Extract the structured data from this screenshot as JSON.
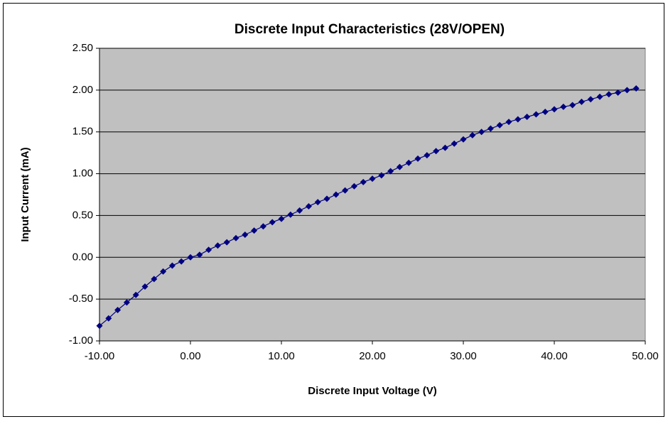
{
  "chart_data": {
    "type": "scatter",
    "title": "Discrete Input Characteristics (28V/OPEN)",
    "x_label": "Discrete Input Voltage (V)",
    "y_label": "Input Current (mA)",
    "x": [
      -10,
      -9,
      -8,
      -7,
      -6,
      -5,
      -4,
      -3,
      -2,
      -1,
      0,
      1,
      2,
      3,
      4,
      5,
      6,
      7,
      8,
      9,
      10,
      11,
      12,
      13,
      14,
      15,
      16,
      17,
      18,
      19,
      20,
      21,
      22,
      23,
      24,
      25,
      26,
      27,
      28,
      29,
      30,
      31,
      32,
      33,
      34,
      35,
      36,
      37,
      38,
      39,
      40,
      41,
      42,
      43,
      44,
      45,
      46,
      47,
      48,
      49
    ],
    "series": [
      {
        "color": "#000080",
        "values": [
          -0.82,
          -0.73,
          -0.63,
          -0.54,
          -0.45,
          -0.35,
          -0.26,
          -0.17,
          -0.1,
          -0.05,
          0.0,
          0.03,
          0.09,
          0.14,
          0.18,
          0.23,
          0.27,
          0.32,
          0.37,
          0.42,
          0.46,
          0.51,
          0.56,
          0.61,
          0.66,
          0.7,
          0.75,
          0.8,
          0.85,
          0.9,
          0.94,
          0.98,
          1.03,
          1.08,
          1.13,
          1.18,
          1.22,
          1.27,
          1.31,
          1.36,
          1.41,
          1.46,
          1.5,
          1.54,
          1.58,
          1.62,
          1.65,
          1.68,
          1.71,
          1.74,
          1.77,
          1.8,
          1.82,
          1.86,
          1.89,
          1.92,
          1.95,
          1.97,
          2.0,
          2.02
        ]
      }
    ],
    "xlim": [
      -10,
      50
    ],
    "ylim": [
      -1,
      2.5
    ],
    "xticks": [
      {
        "value": -10,
        "label": "-10.00"
      },
      {
        "value": 0,
        "label": "0.00"
      },
      {
        "value": 10,
        "label": "10.00"
      },
      {
        "value": 20,
        "label": "20.00"
      },
      {
        "value": 30,
        "label": "30.00"
      },
      {
        "value": 40,
        "label": "40.00"
      },
      {
        "value": 50,
        "label": "50.00"
      }
    ],
    "yticks": [
      {
        "value": -1,
        "label": "-1.00"
      },
      {
        "value": -0.5,
        "label": "-0.50"
      },
      {
        "value": 0,
        "label": "0.00"
      },
      {
        "value": 0.5,
        "label": "0.50"
      },
      {
        "value": 1,
        "label": "1.00"
      },
      {
        "value": 1.5,
        "label": "1.50"
      },
      {
        "value": 2,
        "label": "2.00"
      },
      {
        "value": 2.5,
        "label": "2.50"
      }
    ],
    "grid": true,
    "plot_background": "#c0c0c0"
  }
}
